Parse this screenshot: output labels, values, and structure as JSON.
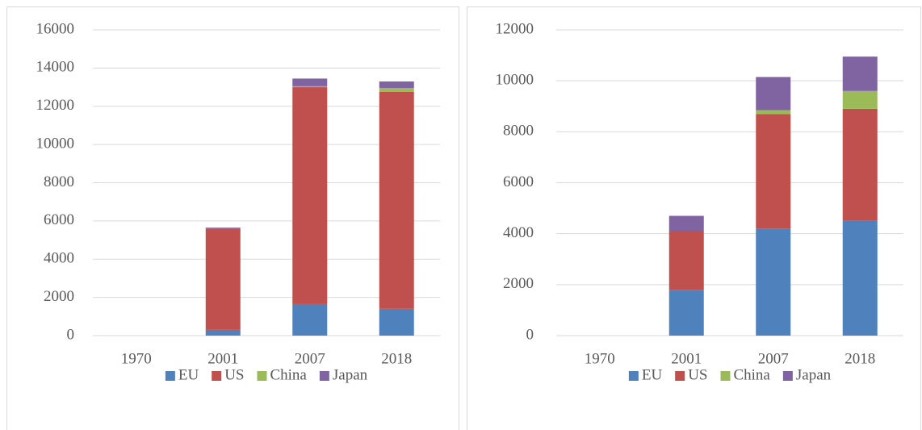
{
  "chart_data": [
    {
      "type": "bar",
      "stacked": true,
      "categories": [
        "1970",
        "2001",
        "2007",
        "2018"
      ],
      "series": [
        {
          "name": "EU",
          "color": "#4f81bd",
          "values": [
            0,
            300,
            1650,
            1400
          ]
        },
        {
          "name": "US",
          "color": "#c0504d",
          "values": [
            0,
            5300,
            11350,
            11350
          ]
        },
        {
          "name": "China",
          "color": "#9bbb59",
          "values": [
            0,
            0,
            50,
            200
          ]
        },
        {
          "name": "Japan",
          "color": "#8064a2",
          "values": [
            0,
            50,
            400,
            350
          ]
        }
      ],
      "ylim": [
        0,
        16000
      ],
      "yticks": [
        0,
        2000,
        4000,
        6000,
        8000,
        10000,
        12000,
        14000,
        16000
      ],
      "grid": true,
      "legend": "bottom"
    },
    {
      "type": "bar",
      "stacked": true,
      "categories": [
        "1970",
        "2001",
        "2007",
        "2018"
      ],
      "series": [
        {
          "name": "EU",
          "color": "#4f81bd",
          "values": [
            0,
            1800,
            4200,
            4500
          ]
        },
        {
          "name": "US",
          "color": "#c0504d",
          "values": [
            0,
            2300,
            4500,
            4400
          ]
        },
        {
          "name": "China",
          "color": "#9bbb59",
          "values": [
            0,
            0,
            150,
            700
          ]
        },
        {
          "name": "Japan",
          "color": "#8064a2",
          "values": [
            0,
            600,
            1300,
            1350
          ]
        }
      ],
      "ylim": [
        0,
        12000
      ],
      "yticks": [
        0,
        2000,
        4000,
        6000,
        8000,
        10000,
        12000
      ],
      "grid": true,
      "legend": "bottom"
    }
  ]
}
